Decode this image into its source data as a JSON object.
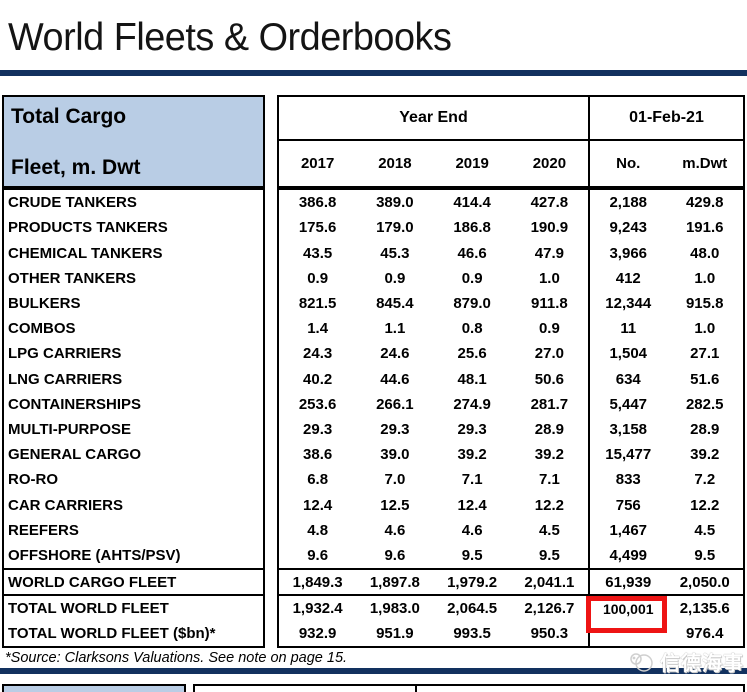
{
  "page_title": "World Fleets & Orderbooks",
  "table": {
    "corner": {
      "line1": "Total Cargo",
      "line2": "Fleet, m. Dwt"
    },
    "header": {
      "year_end_label": "Year End",
      "years": [
        "2017",
        "2018",
        "2019",
        "2020"
      ],
      "snapshot_label": "01-Feb-21",
      "snapshot_cols": {
        "no": "No.",
        "mdwt": "m.Dwt"
      }
    },
    "rows": [
      {
        "label": "CRUDE TANKERS",
        "values": [
          "386.8",
          "389.0",
          "414.4",
          "427.8"
        ],
        "no": "2,188",
        "mdwt": "429.8"
      },
      {
        "label": "PRODUCTS TANKERS",
        "values": [
          "175.6",
          "179.0",
          "186.8",
          "190.9"
        ],
        "no": "9,243",
        "mdwt": "191.6"
      },
      {
        "label": "CHEMICAL TANKERS",
        "values": [
          "43.5",
          "45.3",
          "46.6",
          "47.9"
        ],
        "no": "3,966",
        "mdwt": "48.0"
      },
      {
        "label": "OTHER TANKERS",
        "values": [
          "0.9",
          "0.9",
          "0.9",
          "1.0"
        ],
        "no": "412",
        "mdwt": "1.0"
      },
      {
        "label": "BULKERS",
        "values": [
          "821.5",
          "845.4",
          "879.0",
          "911.8"
        ],
        "no": "12,344",
        "mdwt": "915.8"
      },
      {
        "label": "COMBOS",
        "values": [
          "1.4",
          "1.1",
          "0.8",
          "0.9"
        ],
        "no": "11",
        "mdwt": "1.0"
      },
      {
        "label": "LPG CARRIERS",
        "values": [
          "24.3",
          "24.6",
          "25.6",
          "27.0"
        ],
        "no": "1,504",
        "mdwt": "27.1"
      },
      {
        "label": "LNG CARRIERS",
        "values": [
          "40.2",
          "44.6",
          "48.1",
          "50.6"
        ],
        "no": "634",
        "mdwt": "51.6"
      },
      {
        "label": "CONTAINERSHIPS",
        "values": [
          "253.6",
          "266.1",
          "274.9",
          "281.7"
        ],
        "no": "5,447",
        "mdwt": "282.5"
      },
      {
        "label": "MULTI-PURPOSE",
        "values": [
          "29.3",
          "29.3",
          "29.3",
          "28.9"
        ],
        "no": "3,158",
        "mdwt": "28.9"
      },
      {
        "label": "GENERAL CARGO",
        "values": [
          "38.6",
          "39.0",
          "39.2",
          "39.2"
        ],
        "no": "15,477",
        "mdwt": "39.2"
      },
      {
        "label": "RO-RO",
        "values": [
          "6.8",
          "7.0",
          "7.1",
          "7.1"
        ],
        "no": "833",
        "mdwt": "7.2"
      },
      {
        "label": "CAR CARRIERS",
        "values": [
          "12.4",
          "12.5",
          "12.4",
          "12.2"
        ],
        "no": "756",
        "mdwt": "12.2"
      },
      {
        "label": "REEFERS",
        "values": [
          "4.8",
          "4.6",
          "4.6",
          "4.5"
        ],
        "no": "1,467",
        "mdwt": "4.5"
      },
      {
        "label": "OFFSHORE (AHTS/PSV)",
        "values": [
          "9.6",
          "9.6",
          "9.5",
          "9.5"
        ],
        "no": "4,499",
        "mdwt": "9.5"
      }
    ],
    "world_cargo": {
      "label": "WORLD CARGO FLEET",
      "values": [
        "1,849.3",
        "1,897.8",
        "1,979.2",
        "2,041.1"
      ],
      "no": "61,939",
      "mdwt": "2,050.0"
    },
    "total_fleet": {
      "label": "TOTAL WORLD FLEET",
      "values": [
        "1,932.4",
        "1,983.0",
        "2,064.5",
        "2,126.7"
      ],
      "no": "100,001",
      "mdwt": "2,135.6"
    },
    "total_fleet_bn": {
      "label": "TOTAL WORLD FLEET ($bn)*",
      "values": [
        "932.9",
        "951.9",
        "993.5",
        "950.3"
      ],
      "no": "",
      "mdwt": "976.4"
    }
  },
  "highlight": {
    "highlighted_value": "100,001",
    "color": "#EE1414"
  },
  "footer": {
    "source_note": "*Source: Clarksons Valuations. See note on page 15."
  },
  "watermark": {
    "text": "信德海事"
  },
  "colors": {
    "accent_rule": "#12315F",
    "header_fill": "#B9CDE5",
    "highlight_box": "#EE1414",
    "watermark_gray": "#D3D3D3"
  }
}
